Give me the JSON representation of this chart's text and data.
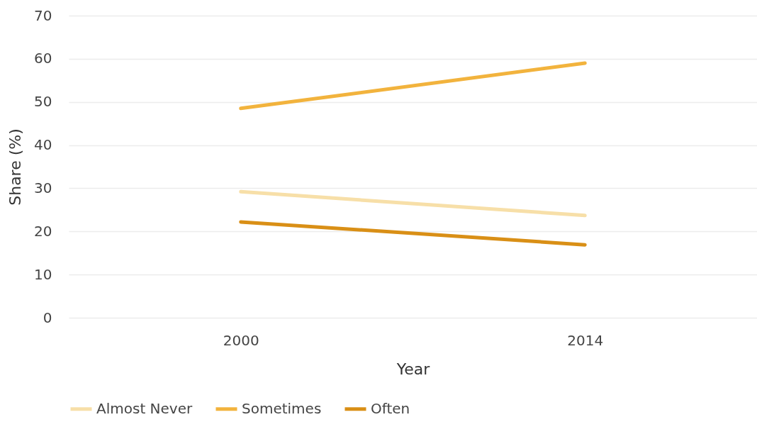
{
  "chart_data": {
    "type": "line",
    "xlabel": "Year",
    "ylabel": "Share (%)",
    "categories": [
      "2000",
      "2014"
    ],
    "series": [
      {
        "name": "Almost Never",
        "color": "#f7dfa8",
        "values": [
          29.2,
          23.7
        ]
      },
      {
        "name": "Sometimes",
        "color": "#f2b33d",
        "values": [
          48.5,
          59.0
        ]
      },
      {
        "name": "Often",
        "color": "#d98f16",
        "values": [
          22.2,
          16.9
        ]
      }
    ],
    "ylim": [
      0,
      70
    ],
    "yticks": [
      0,
      10,
      20,
      30,
      40,
      50,
      60,
      70
    ],
    "grid": "y",
    "legend": "bottom",
    "marker": "none",
    "line_style": "solid"
  }
}
